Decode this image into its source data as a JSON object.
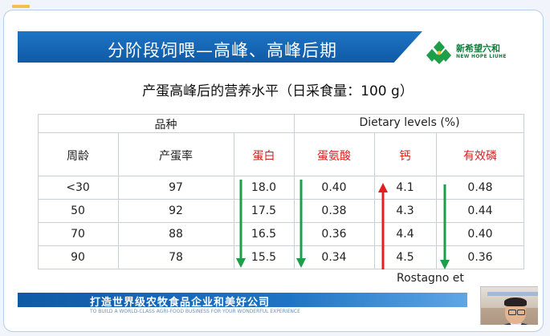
{
  "slide": {
    "title": "分阶段饲喂—高峰、高峰后期",
    "subtitle": "产蛋高峰后的营养水平（日采食量：100 g）",
    "logo": {
      "cn": "新希望六和",
      "en": "NEW HOPE LIUHE"
    },
    "table": {
      "group_headers": {
        "left": "品种",
        "right": "Dietary levels (%)"
      },
      "columns": [
        "周龄",
        "产蛋率",
        "蛋白",
        "蛋氨酸",
        "钙",
        "有效磷"
      ],
      "rows": [
        [
          "<30",
          "97",
          "18.0",
          "0.40",
          "4.1",
          "0.48"
        ],
        [
          "50",
          "92",
          "17.5",
          "0.38",
          "4.3",
          "0.44"
        ],
        [
          "70",
          "88",
          "16.5",
          "0.36",
          "4.4",
          "0.40"
        ],
        [
          "90",
          "78",
          "15.5",
          "0.34",
          "4.5",
          "0.36"
        ]
      ]
    },
    "citation": "Rostagno et",
    "footer": {
      "slogan": "打造世界级农牧食品企业和美好公司",
      "slogan_en": "TO BUILD A WORLD-CLASS AGRI-FOOD BUSINESS FOR YOUR WONDERFUL EXPERIENCE"
    }
  },
  "colors": {
    "banner": "#1565b8",
    "red_label": "#d62020",
    "arrow_green": "#1f9e4a",
    "arrow_red": "#e02020"
  }
}
